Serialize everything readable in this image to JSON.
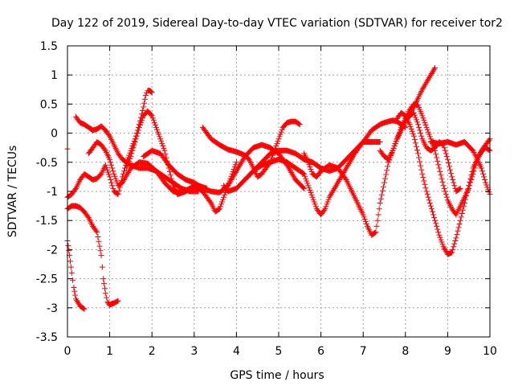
{
  "chart_data": {
    "type": "scatter",
    "title": "Day 122 of 2019, Sidereal Day-to-day VTEC variation (SDTVAR) for receiver tor2",
    "xlabel": "GPS time / hours",
    "ylabel": "SDTVAR / TECUs",
    "xlim": [
      0,
      10
    ],
    "ylim": [
      -3.5,
      1.5
    ],
    "xticks": [
      0,
      1,
      2,
      3,
      4,
      5,
      6,
      7,
      8,
      9,
      10
    ],
    "yticks": [
      -3.5,
      -3,
      -2.5,
      -2,
      -1.5,
      -1,
      -0.5,
      0,
      0.5,
      1,
      1.5
    ],
    "xtick_labels": [
      "0",
      "1",
      "2",
      "3",
      "4",
      "5",
      "6",
      "7",
      "8",
      "9",
      "10"
    ],
    "ytick_labels": [
      "-3.5",
      "-3",
      "-2.5",
      "-2",
      "-1.5",
      "-1",
      "-0.5",
      "0",
      "0.5",
      "1",
      "1.5"
    ],
    "grid": true,
    "marker": "+",
    "color": "#ff0000",
    "series": [
      {
        "name": "s1",
        "x": [
          0.0,
          0.05,
          0.1,
          0.15,
          0.2,
          0.3,
          0.4
        ],
        "y": [
          -1.85,
          -2.1,
          -2.4,
          -2.65,
          -2.85,
          -2.97,
          -3.02
        ]
      },
      {
        "name": "s2",
        "x": [
          0.0,
          0.1,
          0.2,
          0.3,
          0.4,
          0.5,
          0.6,
          0.7,
          0.8,
          0.85,
          0.9,
          0.95,
          1.0,
          1.05,
          1.1,
          1.2
        ],
        "y": [
          -1.3,
          -1.25,
          -1.25,
          -1.28,
          -1.35,
          -1.45,
          -1.6,
          -1.7,
          -2.1,
          -2.5,
          -2.75,
          -2.9,
          -2.95,
          -2.93,
          -2.92,
          -2.88
        ]
      },
      {
        "name": "s3",
        "x": [
          0.0,
          0.1,
          0.2,
          0.3,
          0.4,
          0.5,
          0.6,
          0.7,
          0.8,
          0.9,
          1.0,
          1.1,
          1.2,
          1.3,
          1.4,
          1.5,
          1.6,
          1.7,
          1.8,
          1.85,
          1.9,
          1.95,
          2.0
        ],
        "y": [
          -1.1,
          -1.05,
          -0.95,
          -0.8,
          -0.7,
          -0.75,
          -0.8,
          -0.78,
          -0.7,
          -0.55,
          -0.75,
          -1.0,
          -1.05,
          -0.75,
          -0.5,
          -0.3,
          -0.1,
          0.15,
          0.45,
          0.65,
          0.73,
          0.73,
          0.7
        ]
      },
      {
        "name": "s4",
        "x": [
          0.0
        ],
        "y": [
          -0.27
        ]
      },
      {
        "name": "s5",
        "x": [
          0.2,
          0.3,
          0.4,
          0.5,
          0.6,
          0.7,
          0.8,
          0.9,
          1.0,
          1.1,
          1.2,
          1.3,
          1.5,
          1.7,
          1.9,
          2.1,
          2.3,
          2.5,
          2.7,
          2.9,
          3.1
        ],
        "y": [
          0.28,
          0.18,
          0.15,
          0.1,
          0.05,
          0.07,
          0.12,
          0.05,
          -0.05,
          -0.2,
          -0.35,
          -0.45,
          -0.55,
          -0.6,
          -0.6,
          -0.65,
          -0.75,
          -0.85,
          -0.95,
          -1.0,
          -1.0
        ]
      },
      {
        "name": "s6",
        "x": [
          0.5,
          0.6,
          0.7,
          0.8,
          0.9,
          1.0,
          1.1,
          1.2,
          1.3,
          1.5,
          1.7,
          1.9,
          2.1,
          2.3,
          2.5,
          2.7,
          2.9,
          3.1,
          3.3
        ],
        "y": [
          -0.35,
          -0.25,
          -0.15,
          -0.2,
          -0.3,
          -0.45,
          -0.7,
          -0.9,
          -0.85,
          -0.6,
          -0.5,
          -0.52,
          -0.65,
          -0.85,
          -1.0,
          -1.02,
          -0.95,
          -0.9,
          -0.95
        ]
      },
      {
        "name": "s7",
        "x": [
          1.4,
          1.5,
          1.6,
          1.7,
          1.8,
          1.9,
          2.0,
          2.1,
          2.2,
          2.3,
          2.4,
          2.5,
          2.6,
          2.8,
          3.0,
          3.2,
          3.4,
          3.5,
          3.6,
          3.7,
          3.8,
          3.9,
          4.0
        ],
        "y": [
          -0.6,
          -0.4,
          -0.15,
          0.1,
          0.3,
          0.38,
          0.3,
          0.1,
          -0.1,
          -0.3,
          -0.6,
          -0.9,
          -1.05,
          -1.0,
          -0.9,
          -1.0,
          -1.2,
          -1.35,
          -1.3,
          -1.1,
          -0.9,
          -0.7,
          -0.5
        ]
      },
      {
        "name": "s8",
        "x": [
          1.8,
          2.0,
          2.2,
          2.4,
          2.6,
          2.8,
          3.0,
          3.2,
          3.4,
          3.6,
          3.8,
          4.0,
          4.2,
          4.4,
          4.6,
          4.8,
          5.0,
          5.2,
          5.4,
          5.6
        ],
        "y": [
          -0.4,
          -0.3,
          -0.35,
          -0.55,
          -0.7,
          -0.8,
          -0.85,
          -0.95,
          -1.0,
          -1.02,
          -0.9,
          -0.65,
          -0.4,
          -0.25,
          -0.2,
          -0.25,
          -0.35,
          -0.55,
          -0.8,
          -0.95
        ]
      },
      {
        "name": "s9",
        "x": [
          3.2,
          3.4,
          3.6,
          3.8,
          4.0,
          4.2,
          4.3,
          4.4,
          4.5,
          4.6,
          4.8,
          5.0,
          5.1,
          5.2,
          5.3,
          5.4,
          5.5
        ],
        "y": [
          0.1,
          -0.1,
          -0.2,
          -0.28,
          -0.32,
          -0.38,
          -0.45,
          -0.6,
          -0.75,
          -0.7,
          -0.5,
          -0.1,
          0.1,
          0.18,
          0.2,
          0.2,
          0.15
        ]
      },
      {
        "name": "s10",
        "x": [
          3.7,
          3.8,
          4.0,
          4.2,
          4.4,
          4.6,
          4.8,
          5.0,
          5.2,
          5.4,
          5.6,
          5.7,
          5.8,
          5.9,
          6.0,
          6.1,
          6.2,
          6.4,
          6.6,
          6.8,
          7.0,
          7.2,
          7.4
        ],
        "y": [
          -0.9,
          -1.0,
          -0.95,
          -0.8,
          -0.65,
          -0.55,
          -0.5,
          -0.45,
          -0.5,
          -0.6,
          -0.7,
          -0.9,
          -1.1,
          -1.3,
          -1.4,
          -1.3,
          -1.1,
          -0.85,
          -0.6,
          -0.35,
          -0.15,
          -0.15,
          -0.15
        ]
      },
      {
        "name": "s11",
        "x": [
          4.2,
          4.4,
          4.6,
          4.8,
          5.0,
          5.2,
          5.4,
          5.6,
          5.8,
          6.0,
          6.2,
          6.4,
          6.6,
          6.8,
          7.0,
          7.1,
          7.2,
          7.3,
          7.4,
          7.5,
          7.6,
          7.7,
          7.8,
          7.9,
          8.0
        ],
        "y": [
          -0.8,
          -0.65,
          -0.5,
          -0.35,
          -0.3,
          -0.3,
          -0.35,
          -0.45,
          -0.5,
          -0.6,
          -0.65,
          -0.6,
          -0.45,
          -0.3,
          -0.15,
          -0.05,
          0.05,
          0.1,
          0.15,
          0.18,
          0.2,
          0.22,
          0.2,
          0.15,
          0.1
        ]
      },
      {
        "name": "s12",
        "x": [
          5.6,
          5.7,
          5.8,
          5.9,
          6.0,
          6.2,
          6.4,
          6.6,
          6.8,
          7.0,
          7.1,
          7.2,
          7.3,
          7.4,
          7.6,
          7.8,
          8.0,
          8.2,
          8.4,
          8.6,
          8.7
        ],
        "y": [
          -0.35,
          -0.5,
          -0.7,
          -0.75,
          -0.65,
          -0.55,
          -0.6,
          -0.8,
          -1.1,
          -1.4,
          -1.6,
          -1.75,
          -1.7,
          -1.2,
          -0.5,
          -0.1,
          0.2,
          0.45,
          0.75,
          1.0,
          1.12
        ]
      },
      {
        "name": "s13",
        "x": [
          7.4,
          7.5,
          7.6,
          7.7,
          7.8,
          7.9,
          8.0,
          8.1,
          8.2,
          8.3,
          8.4,
          8.5,
          8.6,
          8.7,
          8.8,
          8.9,
          9.0,
          9.1,
          9.2,
          9.3
        ],
        "y": [
          -0.3,
          -0.4,
          -0.45,
          -0.3,
          -0.1,
          0.05,
          0.2,
          0.3,
          0.35,
          0.15,
          -0.1,
          -0.25,
          -0.3,
          -0.25,
          -0.15,
          -0.2,
          -0.45,
          -0.75,
          -1.0,
          -0.95
        ]
      },
      {
        "name": "s14",
        "x": [
          7.6,
          7.7,
          7.8,
          7.9,
          8.0,
          8.1,
          8.2,
          8.3,
          8.4,
          8.5,
          8.6,
          8.7,
          8.8,
          8.9,
          9.0,
          9.1,
          9.2,
          9.3,
          9.4,
          9.5,
          9.6,
          9.7,
          9.8,
          9.9,
          10.0
        ],
        "y": [
          -0.5,
          -0.3,
          -0.1,
          0.1,
          0.25,
          0.4,
          0.5,
          0.48,
          0.3,
          0.1,
          -0.1,
          -0.3,
          -0.6,
          -0.9,
          -1.15,
          -1.3,
          -1.4,
          -1.25,
          -1.1,
          -0.95,
          -0.7,
          -0.45,
          -0.3,
          -0.2,
          -0.1
        ]
      },
      {
        "name": "s15",
        "x": [
          7.8,
          7.9,
          8.0,
          8.1,
          8.2,
          8.3,
          8.4,
          8.5,
          8.6,
          8.7,
          8.8,
          8.9,
          9.0,
          9.1,
          9.2,
          9.3,
          9.4,
          9.5,
          9.6,
          9.7,
          9.8,
          9.9,
          10.0
        ],
        "y": [
          0.25,
          0.35,
          0.3,
          0.15,
          -0.05,
          -0.35,
          -0.7,
          -1.0,
          -1.25,
          -1.5,
          -1.75,
          -1.95,
          -2.08,
          -2.05,
          -1.8,
          -1.5,
          -1.2,
          -0.9,
          -0.6,
          -0.45,
          -0.32,
          -0.25,
          -0.3
        ]
      },
      {
        "name": "s16",
        "x": [
          8.6,
          8.8,
          9.0,
          9.2,
          9.4,
          9.6,
          9.8,
          9.9,
          10.0
        ],
        "y": [
          -0.15,
          -0.18,
          -0.15,
          -0.2,
          -0.15,
          -0.3,
          -0.6,
          -0.85,
          -1.05
        ]
      }
    ]
  }
}
